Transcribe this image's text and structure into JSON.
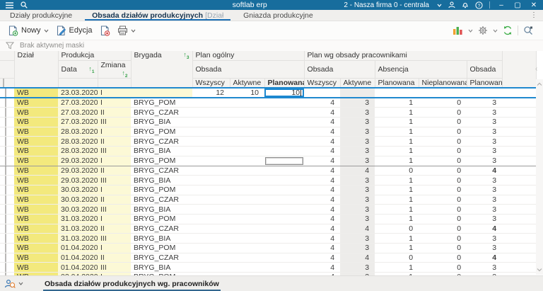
{
  "titlebar": {
    "app_title": "softlab erp",
    "company": "2 - Nasza firma 0 - centrala",
    "minimize": "–",
    "maximize": "▢",
    "close": "✕"
  },
  "tabs": [
    {
      "label": "Działy produkcyjne"
    },
    {
      "label": "Obsada działów produkcyjnych",
      "suffix": "[Dział"
    },
    {
      "label": "Gniazda produkcyjne"
    }
  ],
  "toolbar": {
    "new_label": "Nowy",
    "edit_label": "Edycja"
  },
  "filter": {
    "text": "Brak aktywnej maski"
  },
  "grid": {
    "h": {
      "dzial": "Dział",
      "produkcja": "Produkcja",
      "data": "Data",
      "zmiana": "Zmiana",
      "brygada": "Brygada",
      "plan_ogolny": "Plan ogólny",
      "plan_wg": "Plan wg obsady pracownikami",
      "obsada1": "Obsada",
      "obsada2": "Obsada",
      "absencja": "Absencja",
      "obsada3": "Obsada",
      "wszyscy1": "Wszyscy",
      "aktywne1": "Aktywne",
      "planowana1": "Planowana",
      "wszyscy2": "Wszyscy",
      "aktywne2": "Aktywne",
      "planowana2": "Planowana",
      "nieplanowana": "Nieplanowana",
      "planowana3": "Planowana",
      "sort_data": "1",
      "sort_zmiana": "2",
      "sort_brygada": "3"
    },
    "rows": [
      {
        "dzial": "WB",
        "data": "23.03.2020",
        "zmiana": "I",
        "brygada": "",
        "pow": "12",
        "poa": "10",
        "pop": "10",
        "pww": "",
        "pwa": "",
        "abp": "",
        "abn": "",
        "obp": "",
        "state": "selected",
        "edit": true
      },
      {
        "dzial": "WB",
        "data": "27.03.2020",
        "zmiana": "I",
        "brygada": "BRYG_POM",
        "pow": "",
        "poa": "",
        "pop": "",
        "pww": "4",
        "pwa": "3",
        "abp": "1",
        "abn": "0",
        "obp": "3"
      },
      {
        "dzial": "WB",
        "data": "27.03.2020",
        "zmiana": "II",
        "brygada": "BRYG_CZAR",
        "pow": "",
        "poa": "",
        "pop": "",
        "pww": "4",
        "pwa": "3",
        "abp": "1",
        "abn": "0",
        "obp": "3"
      },
      {
        "dzial": "WB",
        "data": "27.03.2020",
        "zmiana": "III",
        "brygada": "BRYG_BIA",
        "pow": "",
        "poa": "",
        "pop": "",
        "pww": "4",
        "pwa": "3",
        "abp": "1",
        "abn": "0",
        "obp": "3"
      },
      {
        "dzial": "WB",
        "data": "28.03.2020",
        "zmiana": "I",
        "brygada": "BRYG_POM",
        "pow": "",
        "poa": "",
        "pop": "",
        "pww": "4",
        "pwa": "3",
        "abp": "1",
        "abn": "0",
        "obp": "3"
      },
      {
        "dzial": "WB",
        "data": "28.03.2020",
        "zmiana": "II",
        "brygada": "BRYG_CZAR",
        "pow": "",
        "poa": "",
        "pop": "",
        "pww": "4",
        "pwa": "3",
        "abp": "1",
        "abn": "0",
        "obp": "3"
      },
      {
        "dzial": "WB",
        "data": "28.03.2020",
        "zmiana": "III",
        "brygada": "BRYG_BIA",
        "pow": "",
        "poa": "",
        "pop": "",
        "pww": "4",
        "pwa": "3",
        "abp": "1",
        "abn": "0",
        "obp": "3"
      },
      {
        "dzial": "WB",
        "data": "29.03.2020",
        "zmiana": "I",
        "brygada": "BRYG_POM",
        "pow": "",
        "poa": "",
        "pop": "",
        "pww": "4",
        "pwa": "3",
        "abp": "1",
        "abn": "0",
        "obp": "3",
        "state": "focused",
        "focuscell": true
      },
      {
        "dzial": "WB",
        "data": "29.03.2020",
        "zmiana": "II",
        "brygada": "BRYG_CZAR",
        "pow": "",
        "poa": "",
        "pop": "",
        "pww": "4",
        "pwa": "4",
        "abp": "0",
        "abn": "0",
        "obp": "4",
        "bold_last": true
      },
      {
        "dzial": "WB",
        "data": "29.03.2020",
        "zmiana": "III",
        "brygada": "BRYG_BIA",
        "pow": "",
        "poa": "",
        "pop": "",
        "pww": "4",
        "pwa": "3",
        "abp": "1",
        "abn": "0",
        "obp": "3"
      },
      {
        "dzial": "WB",
        "data": "30.03.2020",
        "zmiana": "I",
        "brygada": "BRYG_POM",
        "pow": "",
        "poa": "",
        "pop": "",
        "pww": "4",
        "pwa": "3",
        "abp": "1",
        "abn": "0",
        "obp": "3"
      },
      {
        "dzial": "WB",
        "data": "30.03.2020",
        "zmiana": "II",
        "brygada": "BRYG_CZAR",
        "pow": "",
        "poa": "",
        "pop": "",
        "pww": "4",
        "pwa": "3",
        "abp": "1",
        "abn": "0",
        "obp": "3"
      },
      {
        "dzial": "WB",
        "data": "30.03.2020",
        "zmiana": "III",
        "brygada": "BRYG_BIA",
        "pow": "",
        "poa": "",
        "pop": "",
        "pww": "4",
        "pwa": "3",
        "abp": "1",
        "abn": "0",
        "obp": "3"
      },
      {
        "dzial": "WB",
        "data": "31.03.2020",
        "zmiana": "I",
        "brygada": "BRYG_POM",
        "pow": "",
        "poa": "",
        "pop": "",
        "pww": "4",
        "pwa": "3",
        "abp": "1",
        "abn": "0",
        "obp": "3"
      },
      {
        "dzial": "WB",
        "data": "31.03.2020",
        "zmiana": "II",
        "brygada": "BRYG_CZAR",
        "pow": "",
        "poa": "",
        "pop": "",
        "pww": "4",
        "pwa": "4",
        "abp": "0",
        "abn": "0",
        "obp": "4",
        "bold_last": true
      },
      {
        "dzial": "WB",
        "data": "31.03.2020",
        "zmiana": "III",
        "brygada": "BRYG_BIA",
        "pow": "",
        "poa": "",
        "pop": "",
        "pww": "4",
        "pwa": "3",
        "abp": "1",
        "abn": "0",
        "obp": "3"
      },
      {
        "dzial": "WB",
        "data": "01.04.2020",
        "zmiana": "I",
        "brygada": "BRYG_POM",
        "pow": "",
        "poa": "",
        "pop": "",
        "pww": "4",
        "pwa": "3",
        "abp": "1",
        "abn": "0",
        "obp": "3"
      },
      {
        "dzial": "WB",
        "data": "01.04.2020",
        "zmiana": "II",
        "brygada": "BRYG_CZAR",
        "pow": "",
        "poa": "",
        "pop": "",
        "pww": "4",
        "pwa": "4",
        "abp": "0",
        "abn": "0",
        "obp": "4",
        "bold_last": true
      },
      {
        "dzial": "WB",
        "data": "01.04.2020",
        "zmiana": "III",
        "brygada": "BRYG_BIA",
        "pow": "",
        "poa": "",
        "pop": "",
        "pww": "4",
        "pwa": "3",
        "abp": "1",
        "abn": "0",
        "obp": "3"
      },
      {
        "dzial": "WB",
        "data": "02.04.2020",
        "zmiana": "I",
        "brygada": "BRYG_POM",
        "pow": "",
        "poa": "",
        "pop": "",
        "pww": "4",
        "pwa": "3",
        "abp": "1",
        "abn": "0",
        "obp": "3"
      }
    ]
  },
  "bottombar": {
    "tab": "Obsada działów produkcyjnych wg. pracowników"
  },
  "colors": {
    "titlebar": "#176d9d",
    "selection": "#2089cf",
    "dzial_yellow": "#f3e97d",
    "pale_yellow": "#fcf9d6",
    "grey_column": "#edecea",
    "sort_green": "#2f9e44",
    "tab_underline": "#1a6fb5",
    "bottom_underline": "#33678f"
  }
}
